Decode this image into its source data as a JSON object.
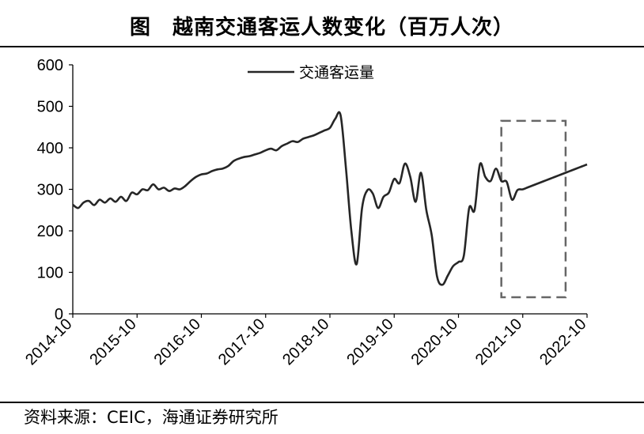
{
  "title": "图　越南交通客运人数变化（百万人次）",
  "source": "资料来源：CEIC，海通证券研究所",
  "chart_data": {
    "type": "line",
    "title": "越南交通客运人数变化（百万人次）",
    "xlabel": "",
    "ylabel": "",
    "ylim": [
      0,
      600
    ],
    "yticks": [
      "0",
      "100",
      "200",
      "300",
      "400",
      "500",
      "600"
    ],
    "xticks": [
      "2014-10",
      "2015-10",
      "2016-10",
      "2017-10",
      "2018-10",
      "2019-10",
      "2020-10",
      "2021-10",
      "2022-10"
    ],
    "grid": false,
    "legend_position": "top-center",
    "series": [
      {
        "name": "交通客运量",
        "color": "#262626",
        "x": [
          "2014-10",
          "2014-11",
          "2014-12",
          "2015-01",
          "2015-02",
          "2015-03",
          "2015-04",
          "2015-05",
          "2015-06",
          "2015-07",
          "2015-08",
          "2015-09",
          "2015-10",
          "2015-11",
          "2015-12",
          "2016-01",
          "2016-02",
          "2016-03",
          "2016-04",
          "2016-05",
          "2016-06",
          "2016-07",
          "2016-08",
          "2016-09",
          "2016-10",
          "2016-11",
          "2016-12",
          "2017-01",
          "2017-02",
          "2017-03",
          "2017-04",
          "2017-05",
          "2017-06",
          "2017-07",
          "2017-08",
          "2017-09",
          "2017-10",
          "2017-11",
          "2017-12",
          "2018-01",
          "2018-02",
          "2018-03",
          "2018-04",
          "2018-05",
          "2018-06",
          "2018-07",
          "2018-08",
          "2018-09",
          "2018-10",
          "2018-11",
          "2018-12",
          "2019-01",
          "2019-02",
          "2019-03",
          "2019-04",
          "2019-05",
          "2019-06",
          "2019-07",
          "2019-08",
          "2019-09",
          "2019-10",
          "2019-11",
          "2019-12",
          "2020-01",
          "2020-02",
          "2020-03",
          "2020-04",
          "2020-05",
          "2020-06",
          "2020-07",
          "2020-08",
          "2020-09",
          "2020-10",
          "2020-11",
          "2020-12",
          "2021-01",
          "2021-02",
          "2021-03",
          "2021-04",
          "2021-05",
          "2021-06",
          "2021-07",
          "2021-08",
          "2021-09",
          "2021-10",
          "2021-11",
          "2021-12",
          "2022-01",
          "2022-02",
          "2022-03",
          "2022-04",
          "2022-05",
          "2022-06",
          "2022-07",
          "2022-08",
          "2022-09",
          "2022-10"
        ],
        "values": [
          263,
          255,
          268,
          272,
          262,
          275,
          268,
          278,
          270,
          282,
          272,
          292,
          288,
          300,
          298,
          312,
          300,
          304,
          296,
          302,
          300,
          308,
          320,
          330,
          336,
          338,
          344,
          348,
          350,
          356,
          368,
          374,
          378,
          380,
          384,
          388,
          394,
          398,
          394,
          404,
          410,
          416,
          414,
          422,
          426,
          430,
          436,
          442,
          448,
          470,
          478,
          350,
          200,
          120,
          255,
          298,
          290,
          255,
          282,
          292,
          325,
          315,
          362,
          330,
          270,
          340,
          250,
          190,
          90,
          70,
          92,
          115,
          125,
          140,
          255,
          250,
          360,
          330,
          320,
          350,
          320,
          318,
          275,
          298,
          300,
          305,
          310,
          315,
          320,
          325,
          330,
          335,
          340,
          345,
          350,
          355,
          360
        ],
        "note_values_are_monthly_estimates": ""
      }
    ],
    "annotation_box": {
      "x_from": "2021-06",
      "x_to": "2022-06",
      "y_from": 40,
      "y_to": 465,
      "style": "dashed",
      "color": "#666666"
    }
  }
}
